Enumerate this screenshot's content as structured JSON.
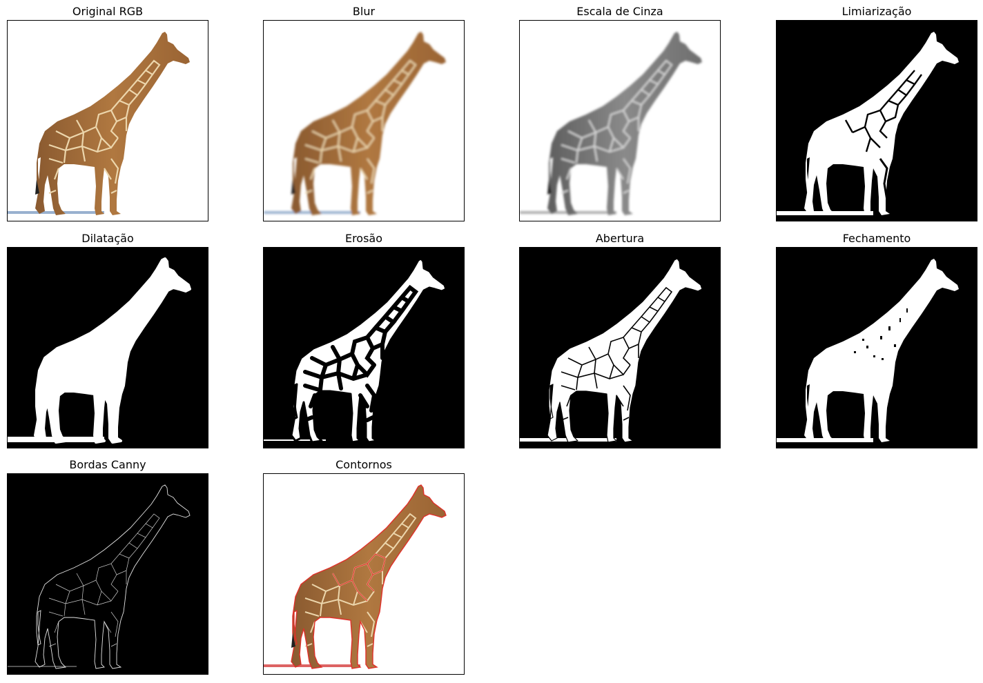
{
  "panels": [
    {
      "title": "Original RGB",
      "style": "color"
    },
    {
      "title": "Blur",
      "style": "blur"
    },
    {
      "title": "Escala de Cinza",
      "style": "gray"
    },
    {
      "title": "Limiarização",
      "style": "binary-pattern"
    },
    {
      "title": "Dilatação",
      "style": "binary-solid"
    },
    {
      "title": "Erosão",
      "style": "binary-eroded"
    },
    {
      "title": "Abertura",
      "style": "binary-pattern"
    },
    {
      "title": "Fechamento",
      "style": "binary-closed"
    },
    {
      "title": "Bordas Canny",
      "style": "edges"
    },
    {
      "title": "Contornos",
      "style": "contours"
    }
  ],
  "colors": {
    "giraffe_body": "#a8703c",
    "giraffe_patch_line": "#e8d3a8",
    "giraffe_dark": "#6b4222",
    "contour_red": "#e0302a",
    "binary_white": "#ffffff",
    "binary_black": "#000000",
    "gray_body": "#7a7a7a",
    "gray_line": "#d0d0d0",
    "shadow_blue": "#6f8fb5"
  }
}
